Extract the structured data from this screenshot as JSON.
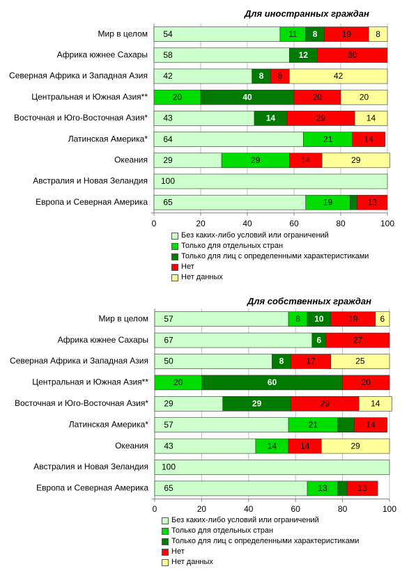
{
  "colors": {
    "no_conditions": "#ccffcc",
    "select_countries": "#00dd00",
    "certain_characteristics": "#007a00",
    "no": "#ff0000",
    "no_data": "#ffff99"
  },
  "chart_data": [
    {
      "type": "bar",
      "orientation": "horizontal",
      "stacked": true,
      "title": "Для иностранных граждан",
      "xlim": [
        0,
        100
      ],
      "xticks": [
        "0",
        "20",
        "40",
        "60",
        "80",
        "100"
      ],
      "grid": true,
      "legend_position": "bottom",
      "categories": [
        "Мир в целом",
        "Африка южнее Сахары",
        "Северная Африка и Западная Азия",
        "Центральная и Южная Азия**",
        "Восточная и Юго-Восточная Азия*",
        "Латинская Америка*",
        "Океания",
        "Австралия и Новая Зеландия",
        "Европа и Северная Америка"
      ],
      "series": [
        {
          "name": "Без каких-либо условий или ограничений",
          "color_key": "no_conditions",
          "values": [
            54,
            58,
            42,
            0,
            43,
            64,
            29,
            100,
            65
          ],
          "labels": [
            "54",
            "58",
            "42",
            "",
            "43",
            "64",
            "29",
            "100",
            "65"
          ]
        },
        {
          "name": "Только для отдельных стран",
          "color_key": "select_countries",
          "values": [
            11,
            0,
            0,
            20,
            0,
            21,
            29,
            0,
            19
          ],
          "labels": [
            "11",
            "",
            "",
            "20",
            "",
            "21",
            "29",
            "",
            "19"
          ]
        },
        {
          "name": "Только для лиц с определенными характеристиками",
          "color_key": "certain_characteristics",
          "values": [
            8,
            12,
            8,
            40,
            14,
            0,
            0,
            0,
            3
          ],
          "labels": [
            "8",
            "12",
            "8",
            "40",
            "14",
            "",
            "",
            "",
            ""
          ]
        },
        {
          "name": "Нет",
          "color_key": "no",
          "values": [
            19,
            30,
            8,
            20,
            29,
            14,
            14,
            0,
            13
          ],
          "labels": [
            "19",
            "30",
            "8",
            "20",
            "29",
            "14",
            "14",
            "",
            "13"
          ]
        },
        {
          "name": "Нет данных",
          "color_key": "no_data",
          "values": [
            8,
            0,
            42,
            20,
            14,
            0,
            29,
            0,
            0
          ],
          "labels": [
            "8",
            "",
            "42",
            "20",
            "14",
            "",
            "29",
            "",
            ""
          ]
        }
      ]
    },
    {
      "type": "bar",
      "orientation": "horizontal",
      "stacked": true,
      "title": "Для собственных граждан",
      "xlim": [
        0,
        100
      ],
      "xticks": [
        "0",
        "20",
        "40",
        "60",
        "80",
        "100"
      ],
      "grid": true,
      "legend_position": "bottom",
      "categories": [
        "Мир в целом",
        "Африка южнее Сахары",
        "Северная Африка и Западная Азия",
        "Центральная и Южная Азия**",
        "Восточная и Юго-Восточная Азия*",
        "Латинская Америка*",
        "Океания",
        "Австралия и Новая Зеландия",
        "Европа и Северная Америка"
      ],
      "series": [
        {
          "name": "Без каких-либо условий или ограничений",
          "color_key": "no_conditions",
          "values": [
            57,
            67,
            50,
            0,
            29,
            57,
            43,
            100,
            65
          ],
          "labels": [
            "57",
            "67",
            "50",
            "",
            "29",
            "57",
            "43",
            "100",
            "65"
          ]
        },
        {
          "name": "Только для отдельных стран",
          "color_key": "select_countries",
          "values": [
            8,
            0,
            0,
            20,
            0,
            21,
            14,
            0,
            13
          ],
          "labels": [
            "8",
            "",
            "",
            "20",
            "",
            "21",
            "14",
            "",
            "13"
          ]
        },
        {
          "name": "Только для лиц с определенными характеристиками",
          "color_key": "certain_characteristics",
          "values": [
            10,
            6,
            8,
            60,
            29,
            7,
            0,
            0,
            4
          ],
          "labels": [
            "10",
            "6",
            "8",
            "60",
            "29",
            "",
            "",
            "",
            ""
          ]
        },
        {
          "name": "Нет",
          "color_key": "no",
          "values": [
            19,
            27,
            17,
            20,
            29,
            14,
            14,
            0,
            13
          ],
          "labels": [
            "19",
            "27",
            "17",
            "20",
            "29",
            "14",
            "14",
            "",
            "13"
          ]
        },
        {
          "name": "Нет данных",
          "color_key": "no_data",
          "values": [
            6,
            0,
            25,
            0,
            14,
            0,
            29,
            0,
            0
          ],
          "labels": [
            "6",
            "",
            "25",
            "",
            "14",
            "",
            "29",
            "",
            ""
          ]
        }
      ]
    }
  ]
}
